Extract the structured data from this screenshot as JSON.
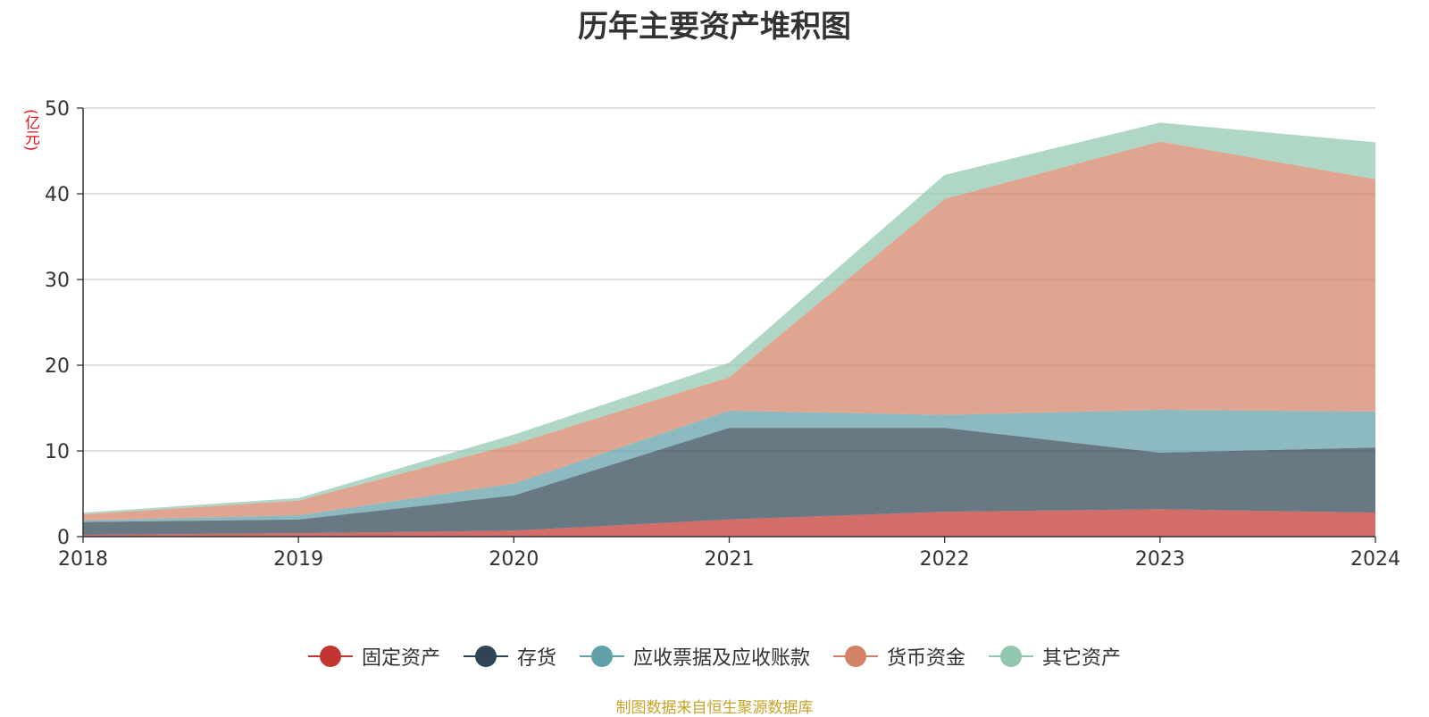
{
  "title": "历年主要资产堆积图",
  "unit_label": "(亿元)",
  "source": "制图数据来自恒生聚源数据库",
  "chart_data": {
    "type": "area",
    "stacked": true,
    "x": [
      "2018",
      "2019",
      "2020",
      "2021",
      "2022",
      "2023",
      "2024"
    ],
    "ylim": [
      0,
      50
    ],
    "yticks": [
      "0",
      "10",
      "20",
      "30",
      "40",
      "50"
    ],
    "grid": true,
    "legend_position": "bottom",
    "series": [
      {
        "name": "固定资产",
        "color": "#c23531",
        "values": [
          0.2,
          0.4,
          0.7,
          2.0,
          2.9,
          3.2,
          2.8
        ]
      },
      {
        "name": "存货",
        "color": "#2f4554",
        "values": [
          1.5,
          1.6,
          4.1,
          10.7,
          9.8,
          6.6,
          7.6
        ]
      },
      {
        "name": "应收票据及应收账款",
        "color": "#61a0a8",
        "values": [
          0.2,
          0.5,
          1.4,
          2.0,
          1.5,
          5.0,
          4.2
        ]
      },
      {
        "name": "货币资金",
        "color": "#d48265",
        "values": [
          0.7,
          1.7,
          4.6,
          3.9,
          25.2,
          31.3,
          27.1
        ]
      },
      {
        "name": "其它资产",
        "color": "#91c7ae",
        "values": [
          0.2,
          0.3,
          1.1,
          1.7,
          2.8,
          2.2,
          4.3
        ]
      }
    ]
  }
}
